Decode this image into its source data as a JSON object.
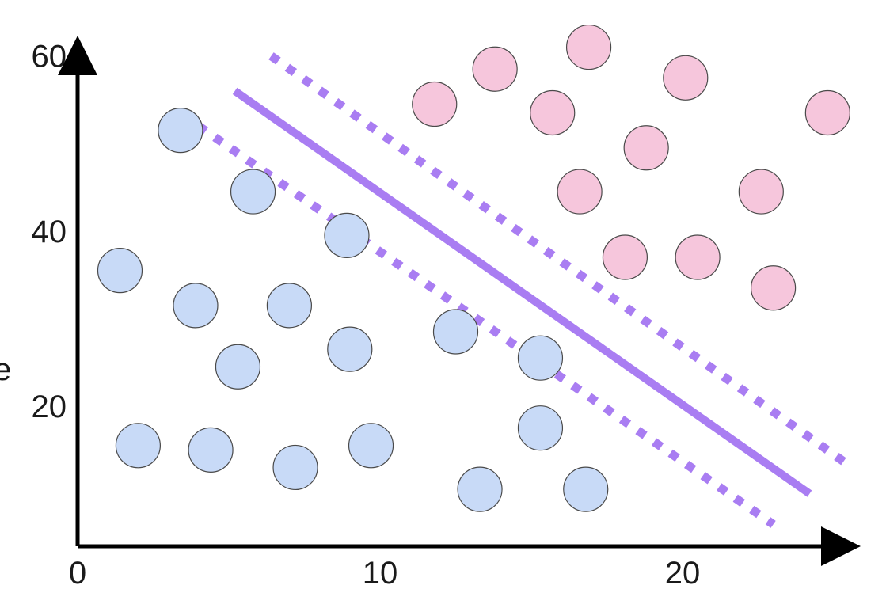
{
  "chart_data": {
    "type": "scatter",
    "title": "",
    "xlabel": "",
    "ylabel": "",
    "ylabel_visible_fragment": "e",
    "xlim": [
      0,
      25
    ],
    "ylim": [
      4,
      62
    ],
    "x_ticks": [
      "0",
      "10",
      "20"
    ],
    "y_ticks": [
      "20",
      "40",
      "60"
    ],
    "x_tick_values": [
      0,
      10,
      20
    ],
    "y_tick_values": [
      20,
      40,
      60
    ],
    "grid": false,
    "series": [
      {
        "color": "#c8daf7",
        "points": [
          [
            3.4,
            51.5
          ],
          [
            5.8,
            44.5
          ],
          [
            8.9,
            39.5
          ],
          [
            1.4,
            35.5
          ],
          [
            3.9,
            31.5
          ],
          [
            7.0,
            31.5
          ],
          [
            9.0,
            26.5
          ],
          [
            12.5,
            28.5
          ],
          [
            5.3,
            24.5
          ],
          [
            15.3,
            25.5
          ],
          [
            2.0,
            15.5
          ],
          [
            4.4,
            15.0
          ],
          [
            7.2,
            13.0
          ],
          [
            9.7,
            15.5
          ],
          [
            15.3,
            17.5
          ],
          [
            13.3,
            10.5
          ],
          [
            16.8,
            10.5
          ]
        ]
      },
      {
        "color": "#f6c6dc",
        "points": [
          [
            11.8,
            54.5
          ],
          [
            13.8,
            58.5
          ],
          [
            16.9,
            61.0
          ],
          [
            15.7,
            53.5
          ],
          [
            20.1,
            57.5
          ],
          [
            24.8,
            53.5
          ],
          [
            18.8,
            49.5
          ],
          [
            16.6,
            44.5
          ],
          [
            22.6,
            44.5
          ],
          [
            18.1,
            37.0
          ],
          [
            20.5,
            37.0
          ],
          [
            23.0,
            33.5
          ]
        ]
      }
    ],
    "lines": [
      {
        "style": "solid",
        "color": "#a97df2",
        "from": [
          5.2,
          56.0
        ],
        "to": [
          24.2,
          10.0
        ]
      },
      {
        "style": "dashed",
        "color": "#a97df2",
        "from": [
          6.4,
          60.0
        ],
        "to": [
          25.4,
          13.5
        ]
      },
      {
        "style": "dashed",
        "color": "#a97df2",
        "from": [
          4.0,
          52.0
        ],
        "to": [
          23.0,
          6.5
        ]
      }
    ]
  }
}
